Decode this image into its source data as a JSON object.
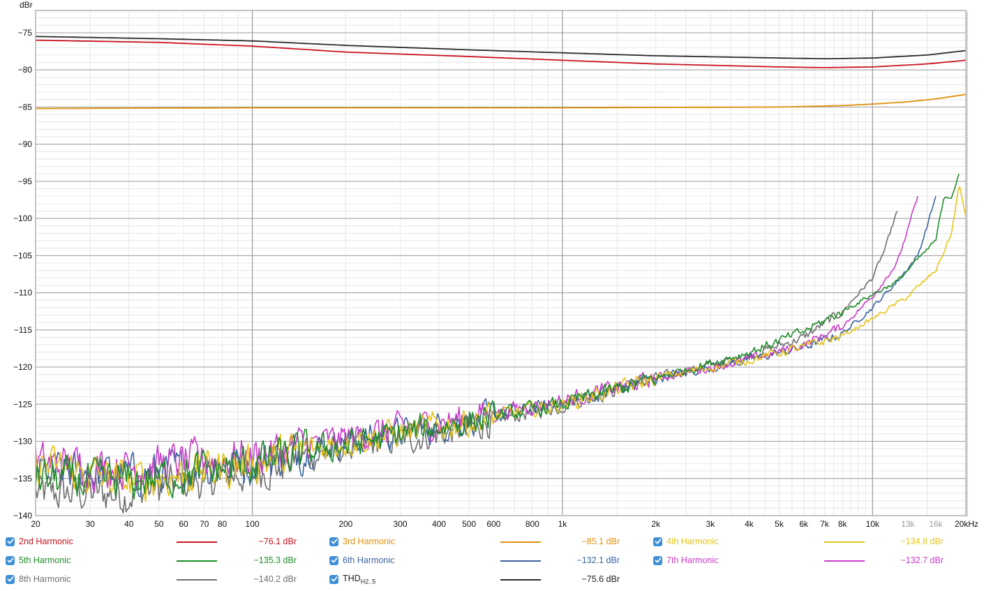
{
  "chart_data": {
    "type": "line",
    "ylabel": "dBr",
    "xscale": "log",
    "xlim": [
      20,
      20000
    ],
    "ylim": [
      -140,
      -72
    ],
    "grid": true,
    "yticks": [
      "-75",
      "-80",
      "-85",
      "-90",
      "-95",
      "-100",
      "-105",
      "-110",
      "-115",
      "-120",
      "-125",
      "-130",
      "-135",
      "-140"
    ],
    "xticks": [
      {
        "value": 20,
        "label": "20",
        "muted": false
      },
      {
        "value": 30,
        "label": "30",
        "muted": false
      },
      {
        "value": 40,
        "label": "40",
        "muted": false
      },
      {
        "value": 50,
        "label": "50",
        "muted": false
      },
      {
        "value": 60,
        "label": "60",
        "muted": false
      },
      {
        "value": 70,
        "label": "70",
        "muted": false
      },
      {
        "value": 80,
        "label": "80",
        "muted": false
      },
      {
        "value": 100,
        "label": "100",
        "muted": false
      },
      {
        "value": 200,
        "label": "200",
        "muted": false
      },
      {
        "value": 300,
        "label": "300",
        "muted": false
      },
      {
        "value": 400,
        "label": "400",
        "muted": false
      },
      {
        "value": 500,
        "label": "500",
        "muted": false
      },
      {
        "value": 600,
        "label": "600",
        "muted": false
      },
      {
        "value": 800,
        "label": "800",
        "muted": false
      },
      {
        "value": 1000,
        "label": "1k",
        "muted": false
      },
      {
        "value": 2000,
        "label": "2k",
        "muted": false
      },
      {
        "value": 3000,
        "label": "3k",
        "muted": false
      },
      {
        "value": 4000,
        "label": "4k",
        "muted": false
      },
      {
        "value": 5000,
        "label": "5k",
        "muted": false
      },
      {
        "value": 6000,
        "label": "6k",
        "muted": false
      },
      {
        "value": 7000,
        "label": "7k",
        "muted": false
      },
      {
        "value": 8000,
        "label": "8k",
        "muted": false
      },
      {
        "value": 10000,
        "label": "10k",
        "muted": false
      },
      {
        "value": 13000,
        "label": "13k",
        "muted": true
      },
      {
        "value": 16000,
        "label": "16k",
        "muted": true
      },
      {
        "value": 20000,
        "label": "20kHz",
        "muted": false
      }
    ],
    "series": [
      {
        "name": "2nd Harmonic",
        "color": "#c8141e",
        "value_text": "−76.1 dBr",
        "noisy": false,
        "points": [
          [
            20,
            -76.0
          ],
          [
            50,
            -76.3
          ],
          [
            100,
            -76.8
          ],
          [
            200,
            -77.6
          ],
          [
            500,
            -78.2
          ],
          [
            1000,
            -78.7
          ],
          [
            2000,
            -79.2
          ],
          [
            5000,
            -79.6
          ],
          [
            7000,
            -79.7
          ],
          [
            10000,
            -79.6
          ],
          [
            15000,
            -79.2
          ],
          [
            20000,
            -78.7
          ]
        ]
      },
      {
        "name": "3rd Harmonic",
        "color": "#e0900a",
        "value_text": "−85.1 dBr",
        "noisy": false,
        "points": [
          [
            20,
            -85.2
          ],
          [
            100,
            -85.1
          ],
          [
            1000,
            -85.1
          ],
          [
            5000,
            -85.0
          ],
          [
            8000,
            -84.8
          ],
          [
            10000,
            -84.6
          ],
          [
            13000,
            -84.3
          ],
          [
            16000,
            -83.9
          ],
          [
            20000,
            -83.3
          ]
        ]
      },
      {
        "name": "4th Harmonic",
        "color": "#e6c419",
        "value_text": "−134.8 dBr",
        "noisy": true,
        "points": [
          [
            20,
            -133
          ],
          [
            40,
            -135.5
          ],
          [
            100,
            -133
          ],
          [
            200,
            -130
          ],
          [
            400,
            -128
          ],
          [
            1000,
            -125
          ],
          [
            2000,
            -121.5
          ],
          [
            4000,
            -119
          ],
          [
            6000,
            -117.3
          ],
          [
            8000,
            -115.8
          ],
          [
            10000,
            -113.5
          ],
          [
            13000,
            -110.5
          ],
          [
            16000,
            -107
          ],
          [
            18000,
            -102
          ],
          [
            19000,
            -95.5
          ],
          [
            20000,
            -99.8
          ]
        ]
      },
      {
        "name": "5th Harmonic",
        "color": "#1e8c28",
        "value_text": "−135.3 dBr",
        "noisy": true,
        "points": [
          [
            20,
            -135
          ],
          [
            40,
            -135.5
          ],
          [
            100,
            -133
          ],
          [
            200,
            -130.5
          ],
          [
            400,
            -128
          ],
          [
            1000,
            -125
          ],
          [
            2000,
            -121.5
          ],
          [
            4000,
            -118
          ],
          [
            6000,
            -115.2
          ],
          [
            8000,
            -112.5
          ],
          [
            10000,
            -110.2
          ],
          [
            12000,
            -108.5
          ],
          [
            14000,
            -105.5
          ],
          [
            16000,
            -103
          ],
          [
            17000,
            -97
          ],
          [
            18000,
            -97
          ],
          [
            19000,
            -94
          ]
        ]
      },
      {
        "name": "6th Harmonic",
        "color": "#3c64a0",
        "value_text": "−132.1 dBr",
        "noisy": true,
        "points": [
          [
            20,
            -134
          ],
          [
            40,
            -134.5
          ],
          [
            100,
            -133
          ],
          [
            200,
            -130
          ],
          [
            400,
            -128
          ],
          [
            1000,
            -125
          ],
          [
            2000,
            -121.5
          ],
          [
            4000,
            -119
          ],
          [
            6000,
            -117.3
          ],
          [
            8000,
            -115.5
          ],
          [
            10000,
            -112
          ],
          [
            12000,
            -108.5
          ],
          [
            14000,
            -105
          ],
          [
            15000,
            -101
          ],
          [
            16000,
            -97
          ]
        ]
      },
      {
        "name": "7th Harmonic",
        "color": "#c83cc8",
        "value_text": "−132.7 dBr",
        "noisy": true,
        "points": [
          [
            20,
            -133
          ],
          [
            40,
            -133.5
          ],
          [
            100,
            -132
          ],
          [
            200,
            -129.5
          ],
          [
            400,
            -127.5
          ],
          [
            1000,
            -124.5
          ],
          [
            2000,
            -121.5
          ],
          [
            4000,
            -119
          ],
          [
            6000,
            -117
          ],
          [
            8000,
            -114.5
          ],
          [
            10000,
            -110.5
          ],
          [
            12000,
            -106
          ],
          [
            13000,
            -101.5
          ],
          [
            14000,
            -97
          ]
        ]
      },
      {
        "name": "8th Harmonic",
        "color": "#6e6e6e",
        "value_text": "−140.2 dBr",
        "noisy": true,
        "points": [
          [
            20,
            -137
          ],
          [
            40,
            -137
          ],
          [
            100,
            -134
          ],
          [
            200,
            -131
          ],
          [
            400,
            -129
          ],
          [
            1000,
            -125
          ],
          [
            2000,
            -121.5
          ],
          [
            4000,
            -118.5
          ],
          [
            6000,
            -116
          ],
          [
            8000,
            -112.5
          ],
          [
            10000,
            -108
          ],
          [
            11000,
            -104
          ],
          [
            12000,
            -99
          ]
        ]
      },
      {
        "name": "THD",
        "name_sub": "H2..5",
        "color": "#2a2a2a",
        "value_text": "−75.6 dBr",
        "noisy": false,
        "points": [
          [
            20,
            -75.5
          ],
          [
            50,
            -75.8
          ],
          [
            100,
            -76.1
          ],
          [
            200,
            -76.7
          ],
          [
            500,
            -77.3
          ],
          [
            1000,
            -77.7
          ],
          [
            2000,
            -78.1
          ],
          [
            5000,
            -78.4
          ],
          [
            7000,
            -78.5
          ],
          [
            10000,
            -78.4
          ],
          [
            15000,
            -78.0
          ],
          [
            20000,
            -77.4
          ]
        ]
      }
    ]
  }
}
